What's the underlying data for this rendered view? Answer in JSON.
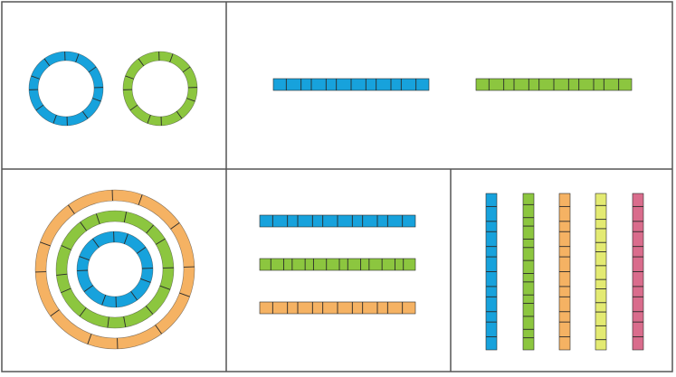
{
  "colors": {
    "blue": "#17a2dc",
    "green": "#8cc63f",
    "orange": "#f5b263",
    "yellow": "#e3ea72",
    "pink": "#d96c8c",
    "border": "#555555",
    "segment_line": "#2a2a2a",
    "background": "#ffffff"
  },
  "panels": [
    {
      "id": "two-rings",
      "shapes": [
        "ring",
        "ring"
      ],
      "colors": [
        "blue",
        "green"
      ],
      "segments": [
        12,
        12
      ]
    },
    {
      "id": "two-strips",
      "shapes": [
        "strip",
        "strip"
      ],
      "colors": [
        "blue",
        "green"
      ],
      "segments": [
        12,
        12
      ]
    },
    {
      "id": "concentric-rings",
      "shapes": [
        "ring",
        "ring",
        "ring"
      ],
      "colors": [
        "blue",
        "green",
        "orange"
      ],
      "segments": [
        12,
        14,
        12
      ]
    },
    {
      "id": "three-strips",
      "shapes": [
        "strip",
        "strip",
        "strip"
      ],
      "colors": [
        "blue",
        "green",
        "orange"
      ],
      "segments": [
        12,
        14,
        12
      ]
    },
    {
      "id": "five-vertical-strips",
      "shapes": [
        "strip",
        "strip",
        "strip",
        "strip",
        "strip"
      ],
      "colors": [
        "blue",
        "green",
        "orange",
        "yellow",
        "pink"
      ],
      "segments": [
        12,
        14,
        12,
        13,
        12
      ]
    }
  ]
}
